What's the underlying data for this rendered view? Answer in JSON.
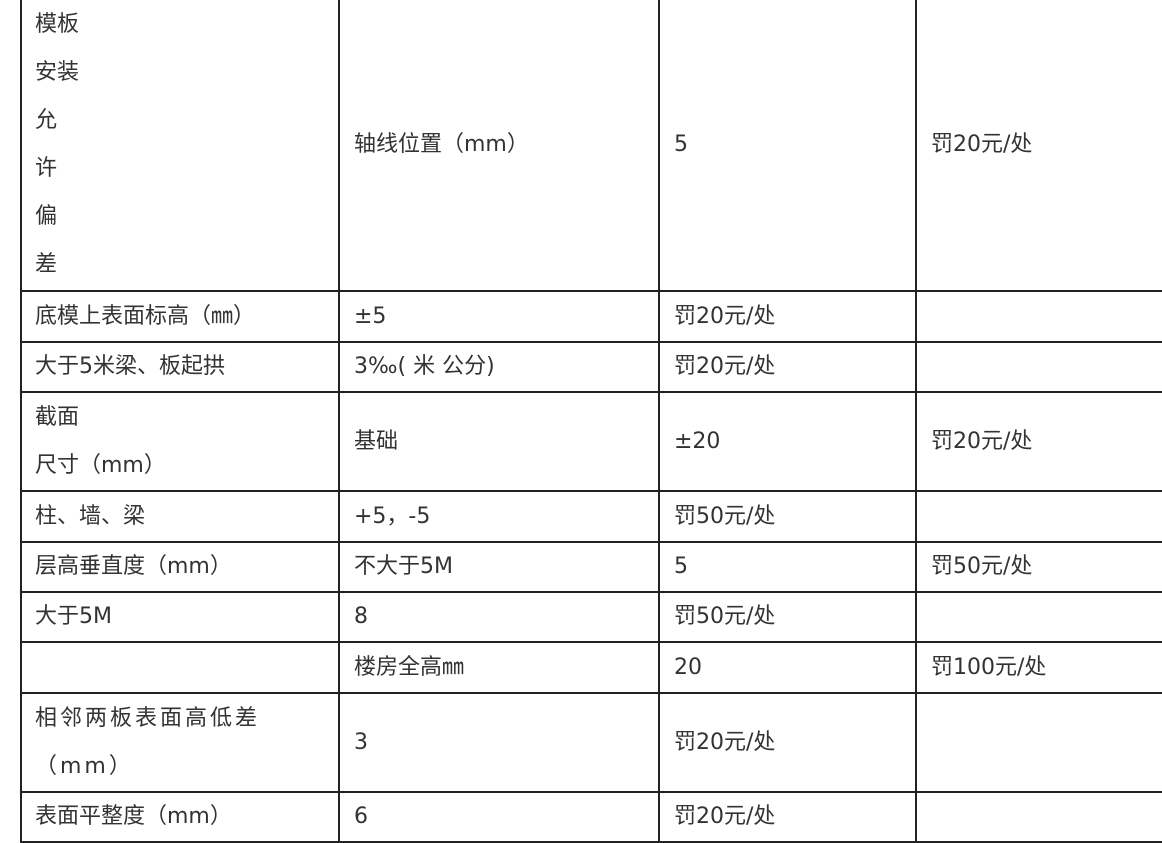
{
  "rows": [
    [
      "模板\n安装\n允\n许\n偏\n差",
      "轴线位置（mm）",
      "5",
      "罚20元/处"
    ],
    [
      "底模上表面标高（㎜）",
      "±5",
      "罚20元/处",
      ""
    ],
    [
      "大于5米梁、板起拱",
      "3‰( 米 公分)",
      "罚20元/处",
      ""
    ],
    [
      "截面\n尺寸（mm）",
      "基础",
      "±20",
      "罚20元/处"
    ],
    [
      "柱、墙、梁",
      "+5，-5",
      "罚50元/处",
      ""
    ],
    [
      "层高垂直度（mm）",
      "不大于5M",
      "5",
      "罚50元/处"
    ],
    [
      "大于5M",
      "8",
      "罚50元/处",
      ""
    ],
    [
      "",
      "楼房全高㎜",
      "20",
      "罚100元/处"
    ],
    [
      "相邻两板表面高低差\n（mm）",
      "3",
      "罚20元/处",
      ""
    ],
    [
      "表面平整度（mm）",
      "6",
      "罚20元/处",
      ""
    ]
  ]
}
